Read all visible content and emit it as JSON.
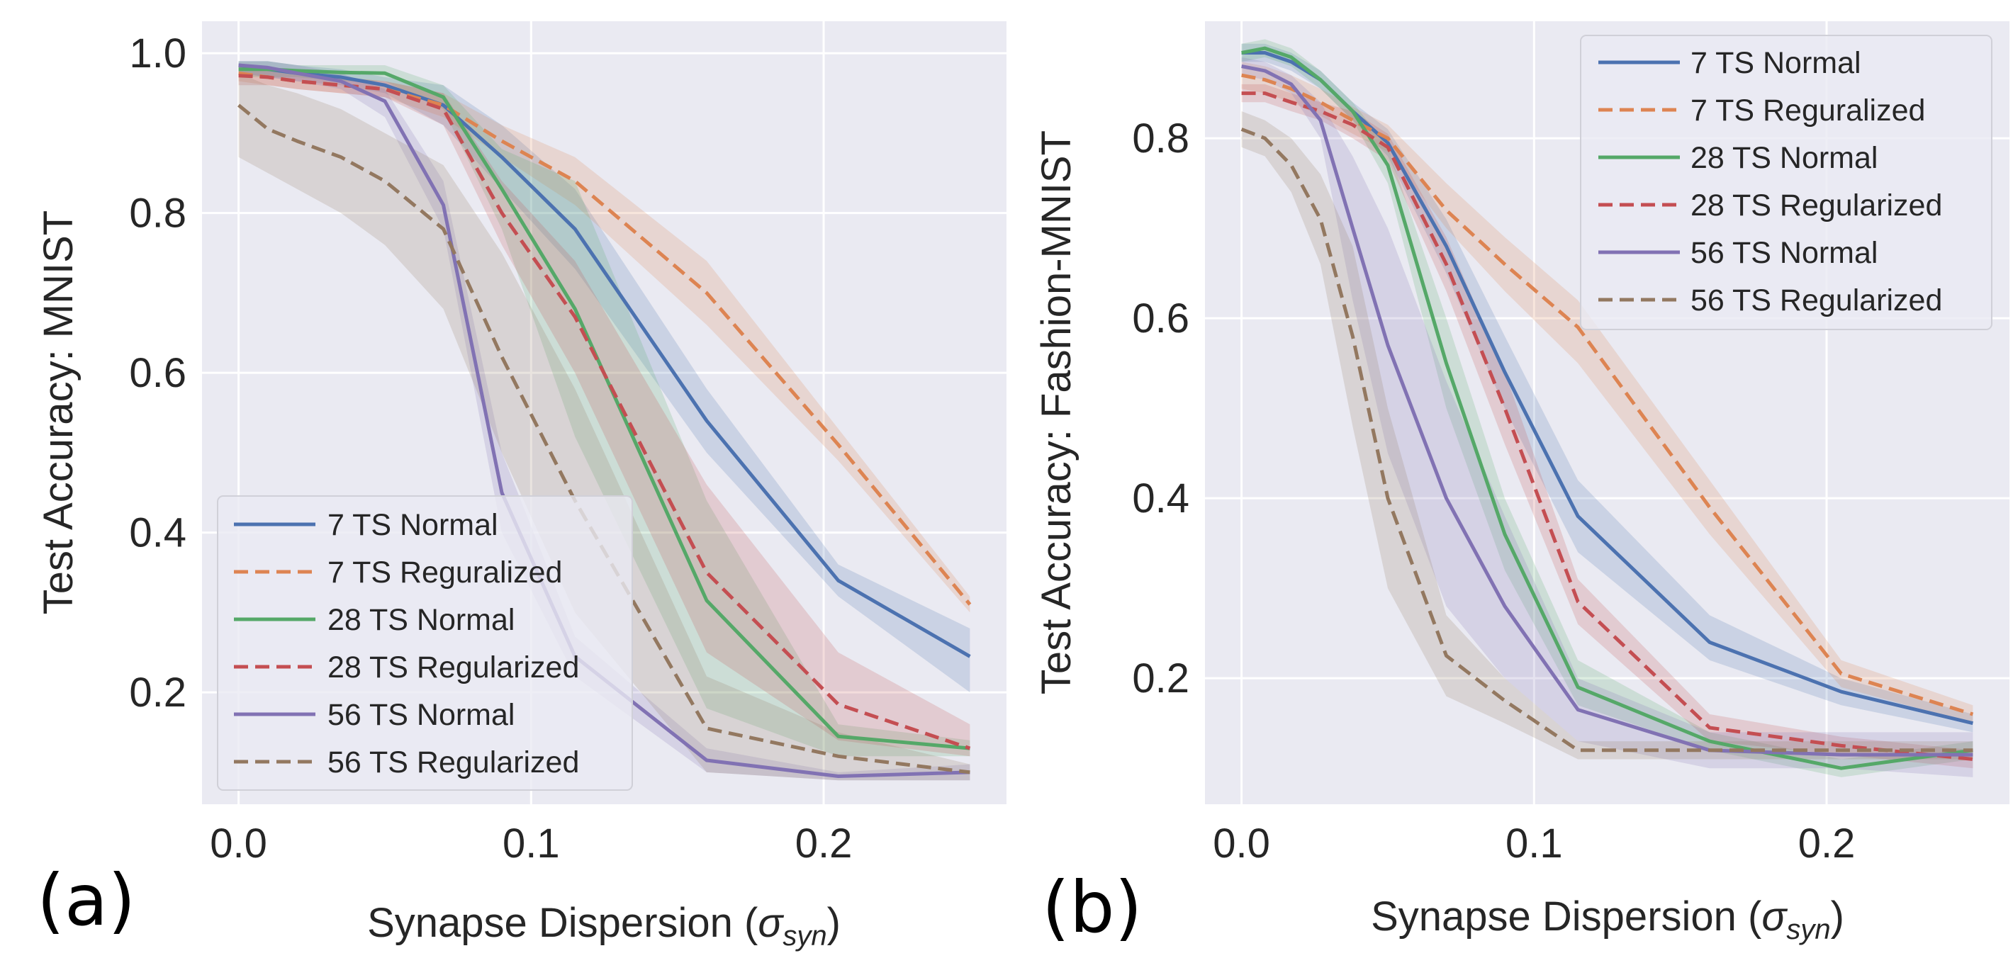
{
  "chart_data": [
    {
      "type": "line",
      "panel_label": "(a)",
      "xlabel": "Synapse Dispersion (",
      "xlabel_symbol": "σ",
      "xlabel_subscript": "syn",
      "xlabel_suffix": ")",
      "ylabel": "Test Accuracy: MNIST",
      "xlim": [
        -0.0125,
        0.2625
      ],
      "ylim": [
        0.06,
        1.04
      ],
      "xticks": [
        0.0,
        0.1,
        0.2
      ],
      "xtick_labels": [
        "0.0",
        "0.1",
        "0.2"
      ],
      "yticks": [
        0.2,
        0.4,
        0.6,
        0.8,
        1.0
      ],
      "ytick_labels": [
        "0.2",
        "0.4",
        "0.6",
        "0.8",
        "1.0"
      ],
      "grid": true,
      "legend_position": "lower-left",
      "x": [
        0.0,
        0.01,
        0.02,
        0.035,
        0.05,
        0.07,
        0.09,
        0.115,
        0.16,
        0.205,
        0.25
      ],
      "series": [
        {
          "name": "7 TS Normal",
          "color": "#4c72b0",
          "dash": "solid",
          "values": [
            0.985,
            0.98,
            0.975,
            0.97,
            0.96,
            0.935,
            0.87,
            0.78,
            0.54,
            0.34,
            0.245
          ],
          "band_low": [
            0.975,
            0.97,
            0.965,
            0.96,
            0.95,
            0.91,
            0.83,
            0.73,
            0.5,
            0.32,
            0.2
          ],
          "band_high": [
            0.99,
            0.99,
            0.985,
            0.98,
            0.97,
            0.96,
            0.91,
            0.83,
            0.58,
            0.36,
            0.28
          ]
        },
        {
          "name": "7 TS Reguralized",
          "color": "#dd8452",
          "dash": "dashed",
          "values": [
            0.975,
            0.97,
            0.965,
            0.96,
            0.955,
            0.935,
            0.89,
            0.84,
            0.7,
            0.51,
            0.31
          ],
          "band_low": [
            0.965,
            0.96,
            0.955,
            0.95,
            0.945,
            0.92,
            0.87,
            0.81,
            0.66,
            0.49,
            0.3
          ],
          "band_high": [
            0.985,
            0.98,
            0.975,
            0.97,
            0.965,
            0.95,
            0.91,
            0.87,
            0.74,
            0.53,
            0.32
          ]
        },
        {
          "name": "28 TS Normal",
          "color": "#55a868",
          "dash": "solid",
          "values": [
            0.98,
            0.98,
            0.978,
            0.976,
            0.975,
            0.945,
            0.83,
            0.68,
            0.315,
            0.145,
            0.13
          ],
          "band_low": [
            0.97,
            0.97,
            0.97,
            0.965,
            0.965,
            0.93,
            0.78,
            0.52,
            0.18,
            0.12,
            0.12
          ],
          "band_high": [
            0.99,
            0.99,
            0.985,
            0.985,
            0.985,
            0.96,
            0.88,
            0.84,
            0.44,
            0.16,
            0.14
          ]
        },
        {
          "name": "28 TS Regularized",
          "color": "#c44e52",
          "dash": "dashed",
          "values": [
            0.972,
            0.97,
            0.965,
            0.96,
            0.955,
            0.93,
            0.8,
            0.67,
            0.35,
            0.185,
            0.13
          ],
          "band_low": [
            0.96,
            0.96,
            0.955,
            0.95,
            0.945,
            0.91,
            0.76,
            0.6,
            0.25,
            0.14,
            0.12
          ],
          "band_high": [
            0.985,
            0.98,
            0.975,
            0.97,
            0.965,
            0.95,
            0.84,
            0.74,
            0.46,
            0.25,
            0.16
          ]
        },
        {
          "name": "56 TS Normal",
          "color": "#8172b3",
          "dash": "solid",
          "values": [
            0.985,
            0.982,
            0.975,
            0.965,
            0.94,
            0.81,
            0.45,
            0.245,
            0.115,
            0.095,
            0.1
          ],
          "band_low": [
            0.975,
            0.97,
            0.965,
            0.955,
            0.92,
            0.78,
            0.4,
            0.22,
            0.1,
            0.09,
            0.09
          ],
          "band_high": [
            0.99,
            0.99,
            0.985,
            0.975,
            0.955,
            0.84,
            0.5,
            0.27,
            0.13,
            0.1,
            0.11
          ]
        },
        {
          "name": "56 TS Regularized",
          "color": "#937860",
          "dash": "dashed",
          "values": [
            0.935,
            0.905,
            0.89,
            0.87,
            0.84,
            0.78,
            0.62,
            0.44,
            0.155,
            0.12,
            0.1
          ],
          "band_low": [
            0.87,
            0.85,
            0.83,
            0.8,
            0.76,
            0.68,
            0.5,
            0.3,
            0.1,
            0.09,
            0.09
          ],
          "band_high": [
            0.975,
            0.96,
            0.95,
            0.93,
            0.9,
            0.86,
            0.75,
            0.58,
            0.22,
            0.15,
            0.11
          ]
        }
      ]
    },
    {
      "type": "line",
      "panel_label": "(b)",
      "xlabel": "Synapse Dispersion (",
      "xlabel_symbol": "σ",
      "xlabel_subscript": "syn",
      "xlabel_suffix": ")",
      "ylabel": "Test Accuracy: Fashion-MNIST",
      "xlim": [
        -0.0125,
        0.2625
      ],
      "ylim": [
        0.06,
        0.93
      ],
      "xticks": [
        0.0,
        0.1,
        0.2
      ],
      "xtick_labels": [
        "0.0",
        "0.1",
        "0.2"
      ],
      "yticks": [
        0.2,
        0.4,
        0.6,
        0.8
      ],
      "ytick_labels": [
        "0.2",
        "0.4",
        "0.6",
        "0.8"
      ],
      "grid": true,
      "legend_position": "top-right",
      "x": [
        0.0,
        0.008,
        0.017,
        0.027,
        0.038,
        0.05,
        0.07,
        0.09,
        0.115,
        0.16,
        0.205,
        0.25
      ],
      "series": [
        {
          "name": "7 TS Normal",
          "color": "#4c72b0",
          "dash": "solid",
          "values": [
            0.895,
            0.895,
            0.885,
            0.865,
            0.83,
            0.795,
            0.68,
            0.54,
            0.38,
            0.24,
            0.185,
            0.15
          ],
          "band_low": [
            0.885,
            0.885,
            0.875,
            0.855,
            0.82,
            0.78,
            0.65,
            0.5,
            0.34,
            0.22,
            0.17,
            0.14
          ],
          "band_high": [
            0.905,
            0.905,
            0.895,
            0.875,
            0.84,
            0.81,
            0.71,
            0.58,
            0.42,
            0.27,
            0.2,
            0.16
          ]
        },
        {
          "name": "7 TS Reguralized",
          "color": "#dd8452",
          "dash": "dashed",
          "values": [
            0.87,
            0.865,
            0.855,
            0.84,
            0.82,
            0.8,
            0.72,
            0.66,
            0.59,
            0.39,
            0.205,
            0.16
          ],
          "band_low": [
            0.855,
            0.85,
            0.84,
            0.825,
            0.805,
            0.785,
            0.7,
            0.63,
            0.55,
            0.36,
            0.19,
            0.15
          ],
          "band_high": [
            0.885,
            0.88,
            0.87,
            0.855,
            0.835,
            0.815,
            0.75,
            0.69,
            0.62,
            0.42,
            0.22,
            0.17
          ]
        },
        {
          "name": "28 TS Normal",
          "color": "#55a868",
          "dash": "solid",
          "values": [
            0.895,
            0.9,
            0.89,
            0.865,
            0.83,
            0.77,
            0.55,
            0.36,
            0.19,
            0.13,
            0.1,
            0.12
          ],
          "band_low": [
            0.885,
            0.89,
            0.88,
            0.855,
            0.82,
            0.75,
            0.5,
            0.32,
            0.17,
            0.12,
            0.09,
            0.11
          ],
          "band_high": [
            0.905,
            0.91,
            0.9,
            0.875,
            0.84,
            0.79,
            0.6,
            0.4,
            0.22,
            0.14,
            0.11,
            0.13
          ]
        },
        {
          "name": "28 TS Regularized",
          "color": "#c44e52",
          "dash": "dashed",
          "values": [
            0.85,
            0.85,
            0.84,
            0.83,
            0.815,
            0.79,
            0.66,
            0.5,
            0.285,
            0.145,
            0.125,
            0.11
          ],
          "band_low": [
            0.84,
            0.84,
            0.83,
            0.82,
            0.8,
            0.775,
            0.63,
            0.46,
            0.26,
            0.13,
            0.115,
            0.1
          ],
          "band_high": [
            0.86,
            0.86,
            0.85,
            0.84,
            0.83,
            0.805,
            0.69,
            0.54,
            0.31,
            0.16,
            0.135,
            0.12
          ]
        },
        {
          "name": "56 TS Normal",
          "color": "#8172b3",
          "dash": "solid",
          "values": [
            0.88,
            0.875,
            0.86,
            0.82,
            0.7,
            0.57,
            0.4,
            0.28,
            0.165,
            0.12,
            0.115,
            0.115
          ],
          "band_low": [
            0.87,
            0.865,
            0.85,
            0.8,
            0.62,
            0.45,
            0.28,
            0.2,
            0.13,
            0.1,
            0.1,
            0.09
          ],
          "band_high": [
            0.89,
            0.885,
            0.87,
            0.84,
            0.78,
            0.7,
            0.53,
            0.38,
            0.2,
            0.14,
            0.14,
            0.14
          ]
        },
        {
          "name": "56 TS Regularized",
          "color": "#937860",
          "dash": "dashed",
          "values": [
            0.81,
            0.8,
            0.77,
            0.71,
            0.58,
            0.4,
            0.225,
            0.175,
            0.12,
            0.12,
            0.12,
            0.12
          ],
          "band_low": [
            0.79,
            0.78,
            0.74,
            0.66,
            0.48,
            0.3,
            0.18,
            0.15,
            0.11,
            0.11,
            0.11,
            0.11
          ],
          "band_high": [
            0.83,
            0.82,
            0.8,
            0.76,
            0.68,
            0.5,
            0.27,
            0.2,
            0.13,
            0.13,
            0.13,
            0.13
          ]
        }
      ]
    }
  ]
}
